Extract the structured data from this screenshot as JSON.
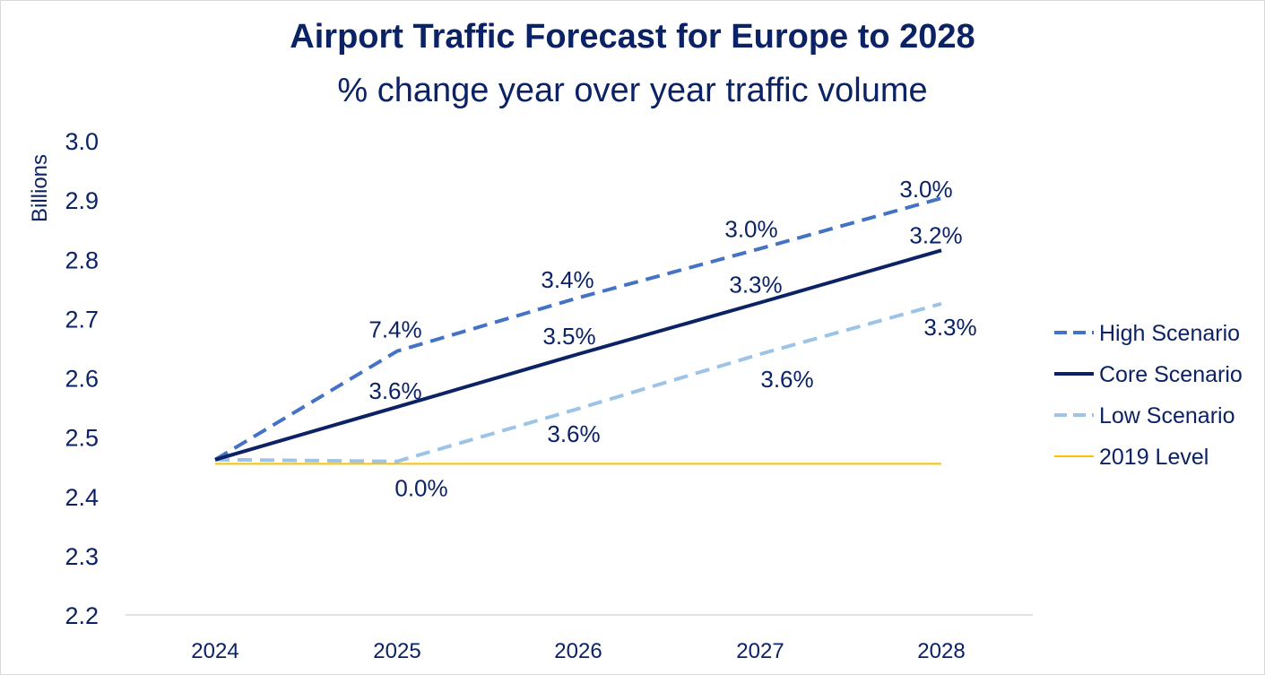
{
  "chart_data": {
    "type": "line",
    "title": "Airport Traffic Forecast for Europe to 2028",
    "subtitle": "% change year over year traffic volume",
    "xlabel": "",
    "ylabel": "Billions",
    "categories": [
      "2024",
      "2025",
      "2026",
      "2027",
      "2028"
    ],
    "ylim": [
      2.2,
      3.0
    ],
    "yticks": [
      "3.0",
      "2.9",
      "2.8",
      "2.7",
      "2.6",
      "2.5",
      "2.4",
      "2.3",
      "2.2"
    ],
    "grid": false,
    "legend_position": "right",
    "series": [
      {
        "name": "High Scenario",
        "color": "#4472c4",
        "style": "dashed",
        "values": [
          2.462,
          2.645,
          2.735,
          2.818,
          2.903
        ],
        "labels": [
          "",
          "7.4%",
          "3.4%",
          "3.0%",
          "3.0%"
        ]
      },
      {
        "name": "Core Scenario",
        "color": "#0b2265",
        "style": "solid",
        "values": [
          2.462,
          2.551,
          2.64,
          2.727,
          2.815
        ],
        "labels": [
          "",
          "3.6%",
          "3.5%",
          "3.3%",
          "3.2%"
        ]
      },
      {
        "name": "Low Scenario",
        "color": "#9dc3e6",
        "style": "dashed",
        "values": [
          2.462,
          2.459,
          2.548,
          2.64,
          2.725
        ],
        "labels": [
          "",
          "0.0%",
          "3.6%",
          "3.6%",
          "3.3%"
        ]
      },
      {
        "name": "2019 Level",
        "color": "#ffc000",
        "style": "solid",
        "values": [
          2.455,
          2.455,
          2.455,
          2.455,
          2.455
        ],
        "labels": [
          "",
          "",
          "",
          "",
          ""
        ]
      }
    ]
  }
}
